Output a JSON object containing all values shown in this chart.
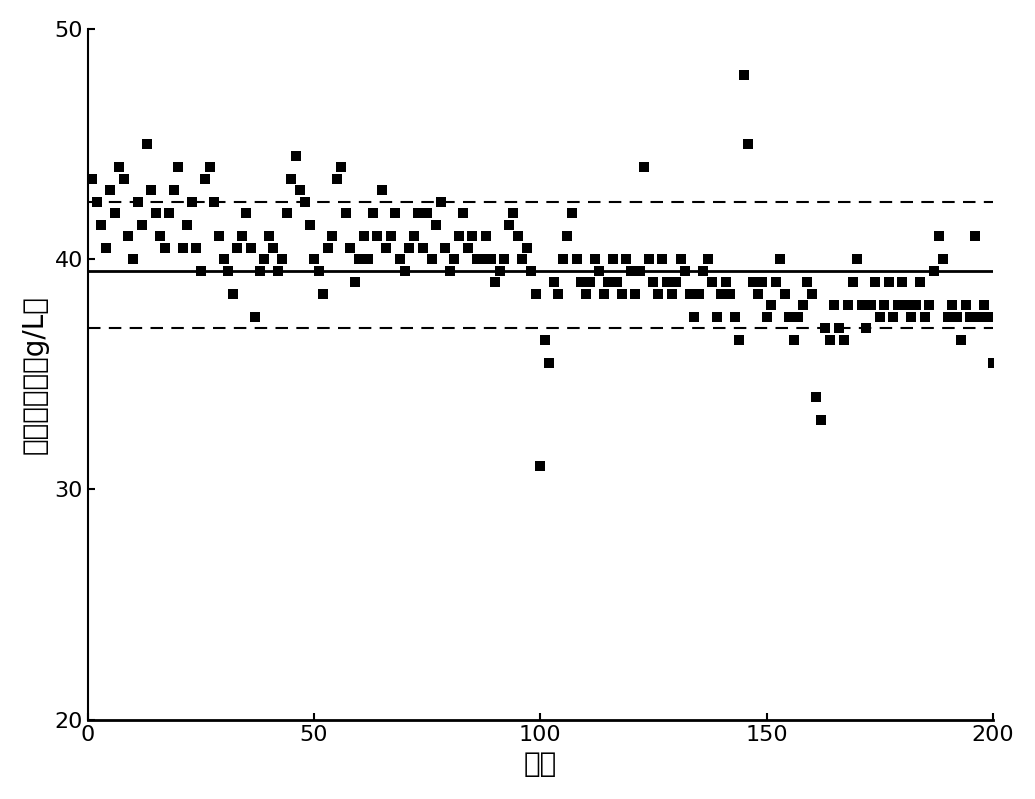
{
  "title": "",
  "xlabel": "菌株",
  "ylabel": "槐糖脂产量（g/L）",
  "xlim": [
    0,
    200
  ],
  "ylim": [
    20,
    50
  ],
  "xticks": [
    0,
    50,
    100,
    150,
    200
  ],
  "yticks": [
    20,
    30,
    40,
    50
  ],
  "mean_line": 39.5,
  "upper_dashed": 42.5,
  "lower_dashed": 37.0,
  "marker_color": "#000000",
  "marker_size": 55,
  "line_color": "#000000",
  "background_color": "#ffffff",
  "x_values": [
    1,
    2,
    3,
    4,
    5,
    6,
    7,
    8,
    9,
    10,
    11,
    12,
    13,
    14,
    15,
    16,
    17,
    18,
    19,
    20,
    21,
    22,
    23,
    24,
    25,
    26,
    27,
    28,
    29,
    30,
    31,
    32,
    33,
    34,
    35,
    36,
    37,
    38,
    39,
    40,
    41,
    42,
    43,
    44,
    45,
    46,
    47,
    48,
    49,
    50,
    51,
    52,
    53,
    54,
    55,
    56,
    57,
    58,
    59,
    60,
    61,
    62,
    63,
    64,
    65,
    66,
    67,
    68,
    69,
    70,
    71,
    72,
    73,
    74,
    75,
    76,
    77,
    78,
    79,
    80,
    81,
    82,
    83,
    84,
    85,
    86,
    87,
    88,
    89,
    90,
    91,
    92,
    93,
    94,
    95,
    96,
    97,
    98,
    99,
    100,
    101,
    102,
    103,
    104,
    105,
    106,
    107,
    108,
    109,
    110,
    111,
    112,
    113,
    114,
    115,
    116,
    117,
    118,
    119,
    120,
    121,
    122,
    123,
    124,
    125,
    126,
    127,
    128,
    129,
    130,
    131,
    132,
    133,
    134,
    135,
    136,
    137,
    138,
    139,
    140,
    141,
    142,
    143,
    144,
    145,
    146,
    147,
    148,
    149,
    150,
    151,
    152,
    153,
    154,
    155,
    156,
    157,
    158,
    159,
    160,
    161,
    162,
    163,
    164,
    165,
    166,
    167,
    168,
    169,
    170,
    171,
    172,
    173,
    174,
    175,
    176,
    177,
    178,
    179,
    180,
    181,
    182,
    183,
    184,
    185,
    186,
    187,
    188,
    189,
    190,
    191,
    192,
    193,
    194,
    195,
    196,
    197,
    198,
    199,
    200
  ],
  "y_values": [
    43.5,
    42.5,
    41.5,
    40.5,
    43.0,
    42.0,
    44.0,
    43.5,
    41.0,
    40.0,
    42.5,
    41.5,
    45.0,
    43.0,
    42.0,
    41.0,
    40.5,
    42.0,
    43.0,
    44.0,
    40.5,
    41.5,
    42.5,
    40.5,
    39.5,
    43.5,
    44.0,
    42.5,
    41.0,
    40.0,
    39.5,
    38.5,
    40.5,
    41.0,
    42.0,
    40.5,
    37.5,
    39.5,
    40.0,
    41.0,
    40.5,
    39.5,
    40.0,
    42.0,
    43.5,
    44.5,
    43.0,
    42.5,
    41.5,
    40.0,
    39.5,
    38.5,
    40.5,
    41.0,
    43.5,
    44.0,
    42.0,
    40.5,
    39.0,
    40.0,
    41.0,
    40.0,
    42.0,
    41.0,
    43.0,
    40.5,
    41.0,
    42.0,
    40.0,
    39.5,
    40.5,
    41.0,
    42.0,
    40.5,
    42.0,
    40.0,
    41.5,
    42.5,
    40.5,
    39.5,
    40.0,
    41.0,
    42.0,
    40.5,
    41.0,
    40.0,
    40.0,
    41.0,
    40.0,
    39.0,
    39.5,
    40.0,
    41.5,
    42.0,
    41.0,
    40.0,
    40.5,
    39.5,
    38.5,
    31.0,
    36.5,
    35.5,
    39.0,
    38.5,
    40.0,
    41.0,
    42.0,
    40.0,
    39.0,
    38.5,
    39.0,
    40.0,
    39.5,
    38.5,
    39.0,
    40.0,
    39.0,
    38.5,
    40.0,
    39.5,
    38.5,
    39.5,
    44.0,
    40.0,
    39.0,
    38.5,
    40.0,
    39.0,
    38.5,
    39.0,
    40.0,
    39.5,
    38.5,
    37.5,
    38.5,
    39.5,
    40.0,
    39.0,
    37.5,
    38.5,
    39.0,
    38.5,
    37.5,
    36.5,
    48.0,
    45.0,
    39.0,
    38.5,
    39.0,
    37.5,
    38.0,
    39.0,
    40.0,
    38.5,
    37.5,
    36.5,
    37.5,
    38.0,
    39.0,
    38.5,
    34.0,
    33.0,
    37.0,
    36.5,
    38.0,
    37.0,
    36.5,
    38.0,
    39.0,
    40.0,
    38.0,
    37.0,
    38.0,
    39.0,
    37.5,
    38.0,
    39.0,
    37.5,
    38.0,
    39.0,
    38.0,
    37.5,
    38.0,
    39.0,
    37.5,
    38.0,
    39.5,
    41.0,
    40.0,
    37.5,
    38.0,
    37.5,
    36.5,
    38.0,
    37.5,
    41.0,
    37.5,
    38.0,
    37.5,
    35.5
  ]
}
